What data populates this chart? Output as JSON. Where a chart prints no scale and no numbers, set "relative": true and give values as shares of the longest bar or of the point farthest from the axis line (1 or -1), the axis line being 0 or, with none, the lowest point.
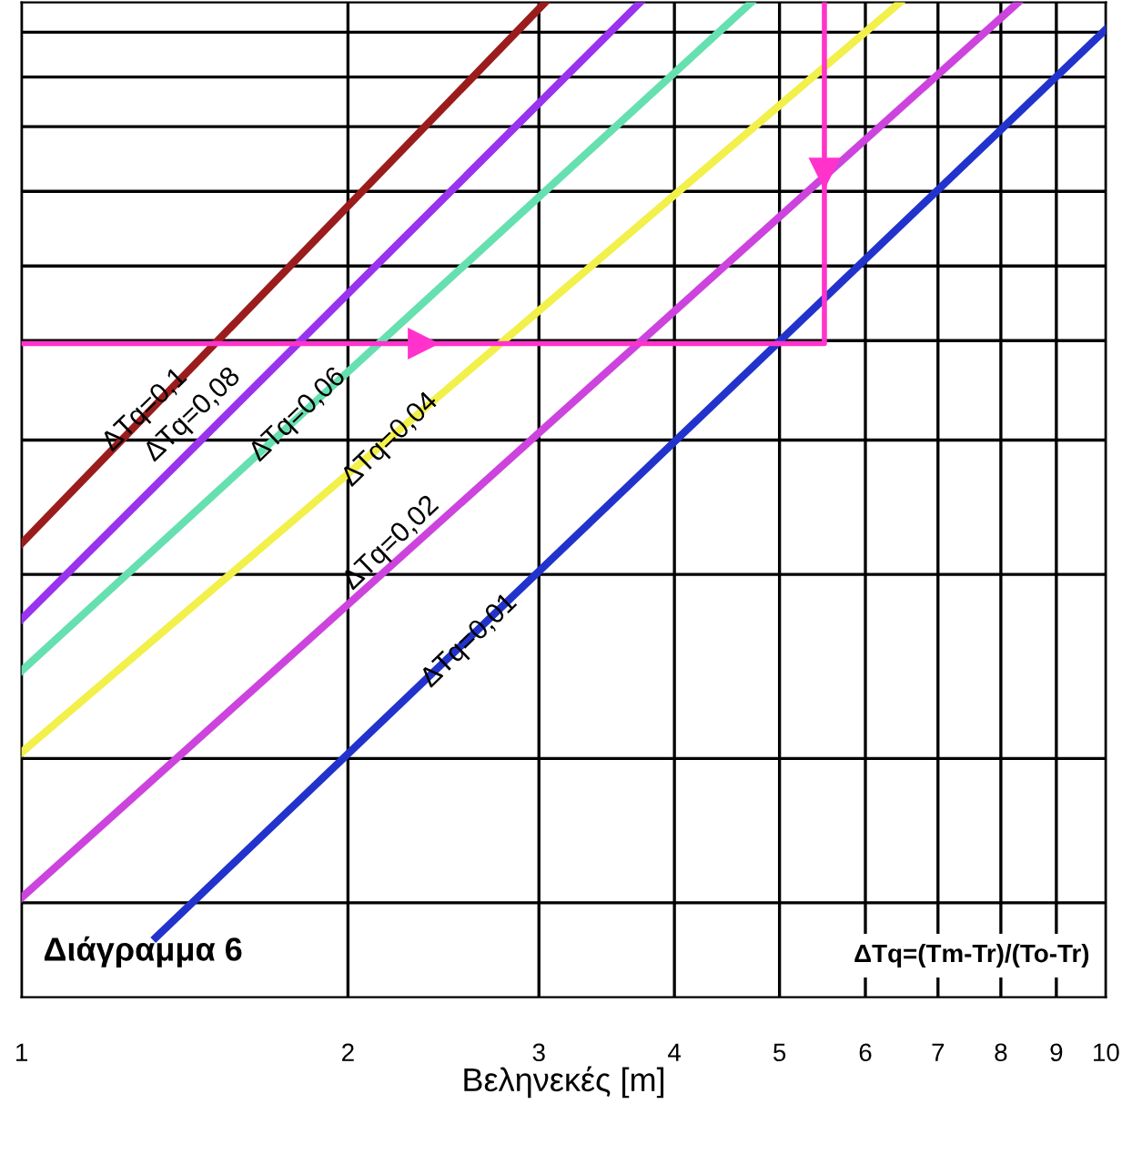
{
  "chart_data": {
    "type": "line",
    "relative": true,
    "log": "x",
    "grid": true,
    "legend": false,
    "marker": "none",
    "line_style": "solid",
    "xlabel": "Βεληνεκές [m]",
    "xlim": [
      1,
      10
    ],
    "xticks": [
      1,
      2,
      3,
      4,
      5,
      6,
      7,
      8,
      9,
      10
    ],
    "series": [
      {
        "color": "#9b1c1c",
        "x": [
          1,
          3.04
        ],
        "values": [
          0.456,
          1
        ]
      },
      {
        "color": "#9933ee",
        "x": [
          1,
          3.72
        ],
        "values": [
          0.38,
          1
        ]
      },
      {
        "color": "#66e0b0",
        "x": [
          1,
          4.71
        ],
        "values": [
          0.328,
          1
        ]
      },
      {
        "color": "#f2f04a",
        "x": [
          1,
          6.46
        ],
        "values": [
          0.246,
          1
        ]
      },
      {
        "color": "#cc44dd",
        "x": [
          1,
          8.3
        ],
        "values": [
          0.1,
          1
        ]
      },
      {
        "color": "#2233cc",
        "x": [
          1.33,
          10
        ],
        "values": [
          0.06,
          0.973
        ]
      },
      {
        "color": "#ff33cc",
        "x": [
          1,
          5.5,
          5.5
        ],
        "values": [
          0.657,
          0.657,
          1
        ]
      }
    ],
    "annotations": [
      "ΔTq=0,1",
      "ΔTq=0,08",
      "ΔTq=0,06",
      "ΔTq=0,04",
      "ΔTq=0,02",
      "ΔTq=0,01",
      "Διάγραμμα 6",
      "ΔTq=(Tm-Tr)/(To-Tr)"
    ]
  }
}
